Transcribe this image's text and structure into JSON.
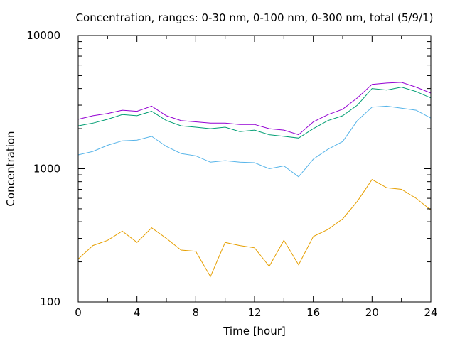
{
  "chart_data": {
    "type": "line",
    "title": "Concentration, ranges: 0-30 nm, 0-100 nm, 0-300 nm, total (5/9/1)",
    "xlabel": "Time [hour]",
    "ylabel": "Concentration",
    "xlim": [
      0,
      24
    ],
    "ylim": [
      100,
      10000
    ],
    "yscale": "log",
    "grid": false,
    "legend": "none",
    "x_ticks": [
      0,
      4,
      8,
      12,
      16,
      20,
      24
    ],
    "x_tick_labels": [
      "0",
      "4",
      "8",
      "12",
      "16",
      "20",
      "24"
    ],
    "y_ticks": [
      100,
      1000,
      10000
    ],
    "y_tick_labels": [
      "100",
      "1000",
      "10000"
    ],
    "x": [
      0,
      1,
      2,
      3,
      4,
      5,
      6,
      7,
      8,
      9,
      10,
      11,
      12,
      13,
      14,
      15,
      16,
      17,
      18,
      19,
      20,
      21,
      22,
      23,
      24
    ],
    "series": [
      {
        "color": "#e69f00",
        "values": [
          210,
          265,
          290,
          340,
          280,
          360,
          300,
          245,
          240,
          155,
          280,
          265,
          255,
          185,
          290,
          190,
          310,
          350,
          420,
          570,
          830,
          720,
          700,
          600,
          490
        ]
      },
      {
        "color": "#56b4e9",
        "values": [
          1270,
          1350,
          1500,
          1620,
          1640,
          1750,
          1470,
          1300,
          1250,
          1120,
          1150,
          1120,
          1110,
          1000,
          1050,
          870,
          1180,
          1400,
          1600,
          2300,
          2900,
          2950,
          2850,
          2750,
          2400
        ]
      },
      {
        "color": "#009e73",
        "values": [
          2100,
          2200,
          2350,
          2550,
          2500,
          2700,
          2300,
          2100,
          2050,
          2000,
          2050,
          1900,
          1950,
          1800,
          1750,
          1700,
          2000,
          2300,
          2500,
          3000,
          4000,
          3900,
          4100,
          3800,
          3400
        ]
      },
      {
        "color": "#9400d3",
        "values": [
          2350,
          2500,
          2600,
          2750,
          2700,
          2950,
          2500,
          2300,
          2250,
          2200,
          2200,
          2150,
          2150,
          2000,
          1950,
          1800,
          2250,
          2550,
          2800,
          3400,
          4300,
          4400,
          4450,
          4100,
          3700
        ]
      }
    ]
  }
}
